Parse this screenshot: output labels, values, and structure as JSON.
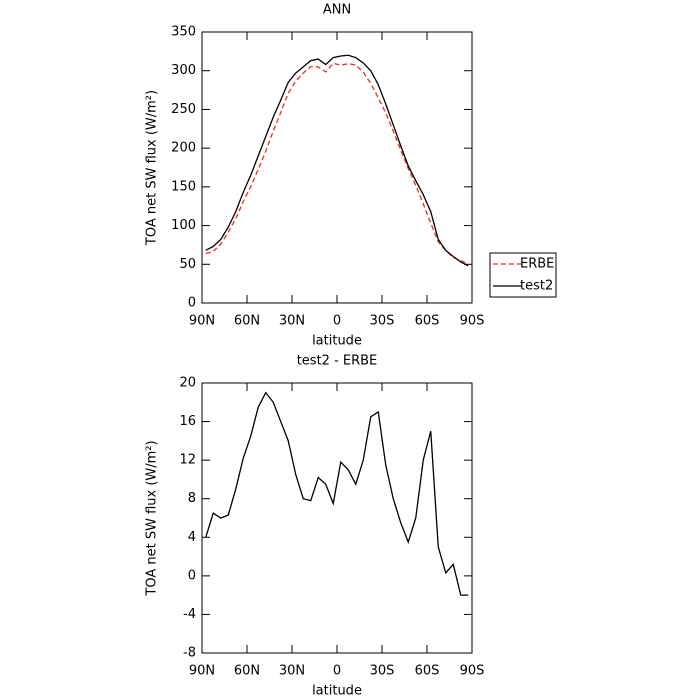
{
  "chart_data": [
    {
      "type": "line",
      "title": "ANN",
      "xlabel": "latitude",
      "ylabel": "TOA net SW flux (W/m²)",
      "x": [
        87.5,
        82.5,
        77.5,
        72.5,
        67.5,
        62.5,
        57.5,
        52.5,
        47.5,
        42.5,
        37.5,
        32.5,
        27.5,
        22.5,
        17.5,
        12.5,
        7.5,
        2.5,
        -2.5,
        -7.5,
        -12.5,
        -17.5,
        -22.5,
        -27.5,
        -32.5,
        -37.5,
        -42.5,
        -47.5,
        -52.5,
        -57.5,
        -62.5,
        -67.5,
        -72.5,
        -77.5,
        -82.5,
        -87.5
      ],
      "series": [
        {
          "name": "ERBE",
          "color": "#e8302a",
          "linestyle": "dashed",
          "values": [
            64,
            66.5,
            76,
            91.7,
            109,
            130.8,
            150.5,
            172.5,
            196,
            222,
            246,
            271,
            286.5,
            297,
            305.2,
            304.8,
            298.5,
            309.5,
            307.2,
            309,
            307.5,
            298,
            283.5,
            265,
            245.5,
            222,
            197.5,
            173.5,
            152,
            128,
            103,
            79,
            67.7,
            58.8,
            55,
            50
          ]
        },
        {
          "name": "test2",
          "color": "#000000",
          "linestyle": "solid",
          "values": [
            68,
            73,
            82,
            98,
            118,
            143,
            165,
            190,
            215,
            240,
            262,
            285,
            297,
            305,
            313,
            315,
            308,
            317,
            319,
            320,
            317,
            310,
            300,
            282,
            257,
            230,
            203,
            177,
            158,
            140,
            118,
            82,
            68,
            60,
            53,
            48
          ]
        }
      ],
      "xlim": [
        90,
        -90
      ],
      "xticks": [
        {
          "value": 90,
          "label": "90N"
        },
        {
          "value": 60,
          "label": "60N"
        },
        {
          "value": 30,
          "label": "30N"
        },
        0,
        {
          "value": -30,
          "label": "30S"
        },
        {
          "value": -60,
          "label": "60S"
        },
        {
          "value": -90,
          "label": "90S"
        }
      ],
      "ylim": [
        0,
        350
      ],
      "yticks": [
        0,
        50,
        100,
        150,
        200,
        250,
        300,
        350
      ],
      "legend": "right"
    },
    {
      "type": "line",
      "title": "test2 - ERBE",
      "xlabel": "latitude",
      "ylabel": "TOA net SW flux (W/m²)",
      "x": [
        87.5,
        82.5,
        77.5,
        72.5,
        67.5,
        62.5,
        57.5,
        52.5,
        47.5,
        42.5,
        37.5,
        32.5,
        27.5,
        22.5,
        17.5,
        12.5,
        7.5,
        2.5,
        -2.5,
        -7.5,
        -12.5,
        -17.5,
        -22.5,
        -27.5,
        -32.5,
        -37.5,
        -42.5,
        -47.5,
        -52.5,
        -57.5,
        -62.5,
        -67.5,
        -72.5,
        -77.5,
        -82.5,
        -87.5
      ],
      "series": [
        {
          "color": "#000000",
          "linestyle": "solid",
          "values": [
            4,
            6.5,
            6,
            6.3,
            9,
            12.2,
            14.5,
            17.5,
            19,
            18,
            16,
            14,
            10.5,
            8,
            7.8,
            10.2,
            9.5,
            7.5,
            11.8,
            11,
            9.5,
            12,
            16.5,
            17,
            11.5,
            8,
            5.5,
            3.5,
            6,
            12,
            15,
            3,
            0.3,
            1.2,
            -2,
            -2
          ]
        }
      ],
      "xlim": [
        90,
        -90
      ],
      "xticks": [
        {
          "value": 90,
          "label": "90N"
        },
        {
          "value": 60,
          "label": "60N"
        },
        {
          "value": 30,
          "label": "30N"
        },
        0,
        {
          "value": -30,
          "label": "30S"
        },
        {
          "value": -60,
          "label": "60S"
        },
        {
          "value": -90,
          "label": "90S"
        }
      ],
      "ylim": [
        -8,
        20
      ],
      "yticks": [
        -8,
        -4,
        0,
        4,
        8,
        12,
        16,
        20
      ]
    }
  ]
}
